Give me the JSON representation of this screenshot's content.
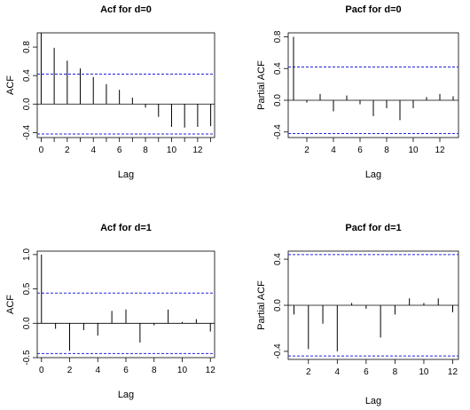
{
  "chart_data": [
    {
      "type": "bar",
      "title": "Acf for d=0",
      "xlabel": "Lag",
      "ylabel": "ACF",
      "x": [
        0,
        1,
        2,
        3,
        4,
        5,
        6,
        7,
        8,
        9,
        10,
        11,
        12,
        13
      ],
      "values": [
        1.0,
        0.79,
        0.61,
        0.5,
        0.38,
        0.28,
        0.2,
        0.09,
        -0.05,
        -0.18,
        -0.32,
        -0.33,
        -0.32,
        -0.31
      ],
      "ci": 0.42,
      "xlim": [
        -0.3,
        13.3
      ],
      "ylim": [
        -0.47,
        1.0
      ],
      "xticks": [
        0,
        2,
        4,
        6,
        8,
        10,
        12
      ],
      "xticks_minor": [
        1,
        3,
        5,
        7,
        9,
        11,
        13
      ],
      "yticks": [
        -0.4,
        0.0,
        0.4,
        0.8
      ],
      "ytick_labels": [
        "-0.4",
        "0.0",
        "0.4",
        "0.8"
      ],
      "grid": false
    },
    {
      "type": "bar",
      "title": "Pacf for d=0",
      "xlabel": "Lag",
      "ylabel": "Partial ACF",
      "x": [
        1,
        2,
        3,
        4,
        5,
        6,
        7,
        8,
        9,
        10,
        11,
        12,
        13
      ],
      "values": [
        0.8,
        -0.03,
        0.08,
        -0.14,
        0.06,
        -0.05,
        -0.2,
        -0.1,
        -0.25,
        -0.1,
        0.04,
        0.08,
        0.05
      ],
      "ci": 0.42,
      "xlim": [
        0.6,
        13.4
      ],
      "ylim": [
        -0.47,
        0.85
      ],
      "xticks": [
        2,
        4,
        6,
        8,
        10,
        12
      ],
      "yticks": [
        -0.4,
        0.0,
        0.4,
        0.8
      ],
      "ytick_labels": [
        "-0.4",
        "0.0",
        "0.4",
        "0.8"
      ],
      "grid": false
    },
    {
      "type": "bar",
      "title": "Acf for d=1",
      "xlabel": "Lag",
      "ylabel": "ACF",
      "x": [
        0,
        1,
        2,
        3,
        4,
        5,
        6,
        7,
        8,
        9,
        10,
        11,
        12
      ],
      "values": [
        1.0,
        -0.08,
        -0.4,
        -0.1,
        -0.18,
        0.18,
        0.2,
        -0.28,
        -0.03,
        0.2,
        0.02,
        0.06,
        -0.12
      ],
      "ci": 0.44,
      "xlim": [
        -0.3,
        12.3
      ],
      "ylim": [
        -0.5,
        1.05
      ],
      "xticks": [
        0,
        2,
        4,
        6,
        8,
        10,
        12
      ],
      "yticks": [
        -0.5,
        0.0,
        0.5,
        1.0
      ],
      "ytick_labels": [
        "-0.5",
        "0.0",
        "0.5",
        "1.0"
      ],
      "grid": false
    },
    {
      "type": "bar",
      "title": "Pacf for d=1",
      "xlabel": "Lag",
      "ylabel": "Partial ACF",
      "x": [
        1,
        2,
        3,
        4,
        5,
        6,
        7,
        8,
        9,
        10,
        11,
        12
      ],
      "values": [
        -0.08,
        -0.38,
        -0.16,
        -0.4,
        0.02,
        -0.03,
        -0.28,
        -0.08,
        0.06,
        0.02,
        0.06,
        -0.06
      ],
      "ci": 0.44,
      "xlim": [
        0.6,
        12.4
      ],
      "ylim": [
        -0.47,
        0.47
      ],
      "xticks": [
        2,
        4,
        6,
        8,
        10,
        12
      ],
      "yticks": [
        -0.4,
        0.0,
        0.4
      ],
      "ytick_labels": [
        "-0.4",
        "0.0",
        "0.4"
      ],
      "grid": false
    }
  ]
}
